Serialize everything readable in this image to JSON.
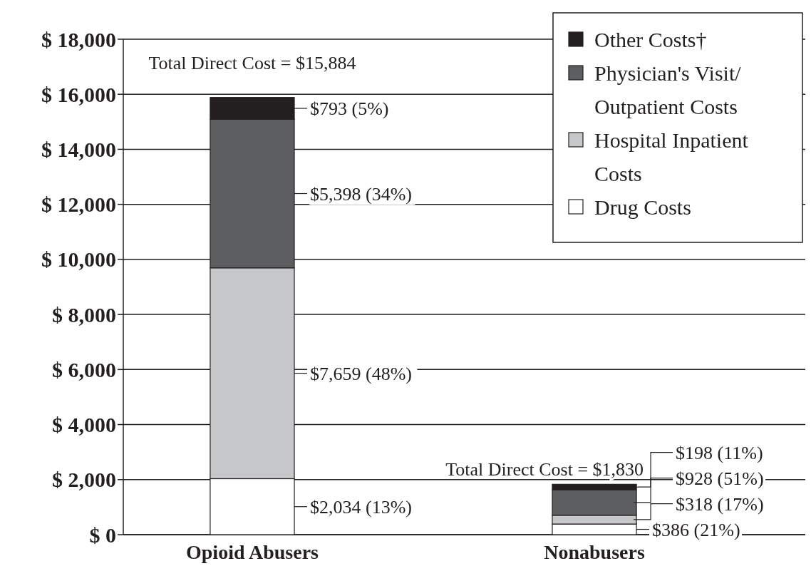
{
  "chart_data": {
    "type": "bar",
    "stacked": true,
    "categories": [
      "Opioid Abusers",
      "Nonabusers"
    ],
    "series": [
      {
        "name": "Drug Costs",
        "color": "#ffffff",
        "values": [
          2034,
          386
        ],
        "value_labels": [
          "$2,034 (13%)",
          "$386 (21%)"
        ]
      },
      {
        "name": "Hospital Inpatient Costs",
        "color": "#c6c7c9",
        "values": [
          7659,
          318
        ],
        "value_labels": [
          "$7,659 (48%)",
          "$318 (17%)"
        ]
      },
      {
        "name": "Physician's Visit/ Outpatient Costs",
        "color": "#5d5e60",
        "values": [
          5398,
          928
        ],
        "value_labels": [
          "$5,398 (34%)",
          "$928 (51%)"
        ]
      },
      {
        "name": "Other Costs†",
        "color": "#231f20",
        "values": [
          793,
          198
        ],
        "value_labels": [
          "$793 (5%)",
          "$198 (11%)"
        ]
      }
    ],
    "totals": [
      "Total Direct Cost = $15,884",
      "Total Direct Cost = $1,830"
    ],
    "ylim": [
      0,
      18000
    ],
    "yticks": [
      {
        "value": 0,
        "label": "$ 0"
      },
      {
        "value": 2000,
        "label": "$ 2,000"
      },
      {
        "value": 4000,
        "label": "$ 4,000"
      },
      {
        "value": 6000,
        "label": "$ 6,000"
      },
      {
        "value": 8000,
        "label": "$ 8,000"
      },
      {
        "value": 10000,
        "label": "$ 10,000"
      },
      {
        "value": 12000,
        "label": "$ 12,000"
      },
      {
        "value": 14000,
        "label": "$ 14,000"
      },
      {
        "value": 16000,
        "label": "$ 16,000"
      },
      {
        "value": 18000,
        "label": "$ 18,000"
      }
    ],
    "grid": "y",
    "legend": "top right"
  }
}
